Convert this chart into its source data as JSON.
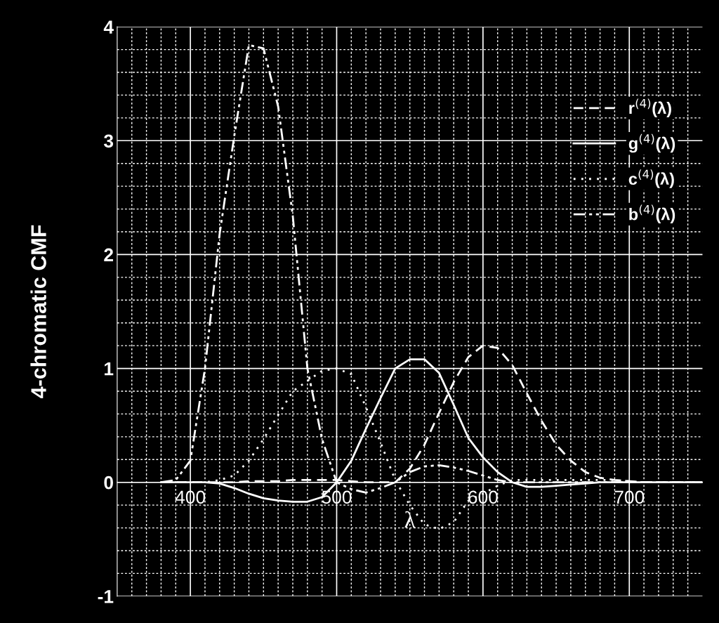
{
  "chart_data": {
    "type": "line",
    "xlabel": "λ",
    "ylabel": "4-chromatic CMF",
    "x": [
      380,
      390,
      400,
      410,
      420,
      430,
      440,
      450,
      460,
      470,
      480,
      490,
      500,
      510,
      520,
      530,
      540,
      550,
      560,
      570,
      580,
      590,
      600,
      610,
      620,
      630,
      640,
      650,
      660,
      670,
      680,
      690,
      700,
      710,
      720,
      730,
      740,
      750
    ],
    "series": [
      {
        "name": "r$^{(4)}$(λ)",
        "color": "#ffffff",
        "line_style": "dashed",
        "values": [
          0,
          0,
          0,
          0,
          0,
          0,
          0.01,
          0.01,
          0.01,
          0.02,
          0.02,
          0.02,
          0.02,
          0.01,
          0,
          0,
          0,
          0.12,
          0.33,
          0.61,
          0.88,
          1.1,
          1.2,
          1.18,
          1.03,
          0.78,
          0.54,
          0.33,
          0.19,
          0.09,
          0.04,
          0.02,
          0.01,
          0,
          0,
          0,
          0,
          0
        ]
      },
      {
        "name": "g$^{(4)}$(λ)",
        "color": "#ffffff",
        "line_style": "solid",
        "values": [
          0,
          0,
          0,
          0,
          -0.01,
          -0.05,
          -0.1,
          -0.14,
          -0.16,
          -0.17,
          -0.17,
          -0.13,
          0,
          0.19,
          0.47,
          0.74,
          1.0,
          1.08,
          1.08,
          0.96,
          0.68,
          0.39,
          0.22,
          0.09,
          0,
          -0.04,
          -0.04,
          -0.03,
          -0.02,
          -0.01,
          0,
          0,
          0,
          0,
          0,
          0,
          0,
          0
        ]
      },
      {
        "name": "c$^{(4)}$(λ)",
        "color": "#ffffff",
        "line_style": "dotted",
        "values": [
          0,
          0,
          0,
          0,
          0.02,
          0.06,
          0.19,
          0.38,
          0.59,
          0.8,
          0.89,
          0.98,
          1.0,
          0.95,
          0.66,
          0.35,
          0.02,
          -0.2,
          -0.37,
          -0.41,
          -0.35,
          -0.16,
          -0.1,
          -0.03,
          0.02,
          0.02,
          0.02,
          0.02,
          0.02,
          0.02,
          0.02,
          0.02,
          0.01,
          0,
          0,
          0,
          0,
          0
        ]
      },
      {
        "name": "b$^{(4)}$(λ)",
        "color": "#ffffff",
        "line_style": "dashdot",
        "values": [
          0,
          0.02,
          0.19,
          1.0,
          2.18,
          3.04,
          3.84,
          3.81,
          3.3,
          2.34,
          1.0,
          0.38,
          0,
          -0.06,
          -0.09,
          -0.05,
          0,
          0.09,
          0.14,
          0.15,
          0.13,
          0.1,
          0.06,
          0.02,
          0,
          0,
          0,
          0,
          0,
          0,
          0,
          0,
          0,
          0,
          0,
          0,
          0,
          0
        ]
      }
    ],
    "xlim": [
      350,
      750
    ],
    "xticks": [
      {
        "value": 360,
        "label": null
      },
      {
        "value": 370,
        "label": null
      },
      {
        "value": 380,
        "label": null
      },
      {
        "value": 390,
        "label": null
      },
      400,
      {
        "value": 410,
        "label": null
      },
      {
        "value": 420,
        "label": null
      },
      {
        "value": 430,
        "label": null
      },
      {
        "value": 440,
        "label": null
      },
      {
        "value": 450,
        "label": null
      },
      {
        "value": 460,
        "label": null
      },
      {
        "value": 470,
        "label": null
      },
      {
        "value": 480,
        "label": null
      },
      {
        "value": 490,
        "label": null
      },
      500,
      {
        "value": 510,
        "label": null
      },
      {
        "value": 520,
        "label": null
      },
      {
        "value": 530,
        "label": null
      },
      {
        "value": 540,
        "label": null
      },
      {
        "value": 550,
        "label": null
      },
      {
        "value": 560,
        "label": null
      },
      {
        "value": 570,
        "label": null
      },
      {
        "value": 580,
        "label": null
      },
      {
        "value": 590,
        "label": null
      },
      600,
      {
        "value": 610,
        "label": null
      },
      {
        "value": 620,
        "label": null
      },
      {
        "value": 630,
        "label": null
      },
      {
        "value": 640,
        "label": null
      },
      {
        "value": 650,
        "label": null
      },
      {
        "value": 660,
        "label": null
      },
      {
        "value": 670,
        "label": null
      },
      {
        "value": 680,
        "label": null
      },
      {
        "value": 690,
        "label": null
      },
      700,
      {
        "value": 710,
        "label": null
      },
      {
        "value": 720,
        "label": null
      },
      {
        "value": 730,
        "label": null
      },
      {
        "value": 740,
        "label": null
      }
    ],
    "ylim": [
      -1,
      4
    ],
    "yticks": [
      -1,
      {
        "value": -0.8,
        "label": null
      },
      {
        "value": -0.6,
        "label": null
      },
      {
        "value": -0.4,
        "label": null
      },
      {
        "value": -0.2,
        "label": null
      },
      0,
      {
        "value": 0.2,
        "label": null
      },
      {
        "value": 0.4,
        "label": null
      },
      {
        "value": 0.6,
        "label": null
      },
      {
        "value": 0.8,
        "label": null
      },
      1,
      {
        "value": 1.2,
        "label": null
      },
      {
        "value": 1.4,
        "label": null
      },
      {
        "value": 1.6,
        "label": null
      },
      {
        "value": 1.8,
        "label": null
      },
      2,
      {
        "value": 2.2,
        "label": null
      },
      {
        "value": 2.4,
        "label": null
      },
      {
        "value": 2.6,
        "label": null
      },
      {
        "value": 2.8,
        "label": null
      },
      3,
      {
        "value": 3.2,
        "label": null
      },
      {
        "value": 3.4,
        "label": null
      },
      {
        "value": 3.6,
        "label": null
      },
      {
        "value": 3.8,
        "label": null
      },
      4
    ],
    "grid": true,
    "legend": "top right",
    "marker": "none"
  }
}
